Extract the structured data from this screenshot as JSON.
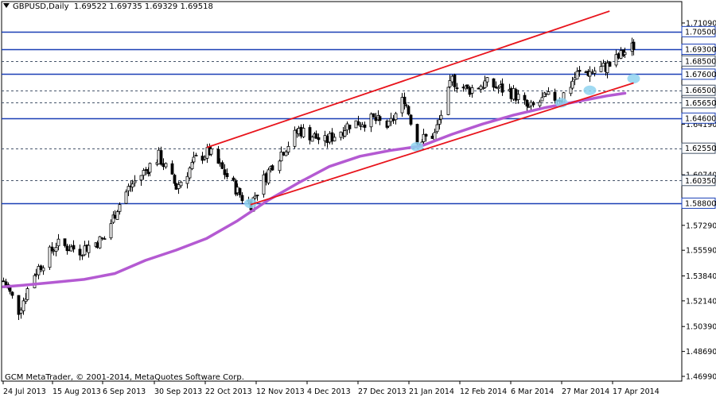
{
  "header": {
    "symbol": "GBPUSD,Daily",
    "ohlc": "1.69522 1.69735 1.69329 1.69518"
  },
  "copyright": "GCM MetaTrader, © 2001-2014, MetaQuotes Software Corp.",
  "colors": {
    "candle": "#000000",
    "level_line": "#1a3fb5",
    "dashed_level": "#45546a",
    "trend_channel": "#e8141c",
    "moving_average": "#b45ad2",
    "touch_marker": "#8fd3f0",
    "price_label_bg": "#ffffff"
  },
  "chart_data": {
    "type": "candlestick",
    "title": "GBPUSD,Daily",
    "x_ticks": [
      "24 Jul 2013",
      "15 Aug 2013",
      "6 Sep 2013",
      "30 Sep 2013",
      "22 Oct 2013",
      "12 Nov 2013",
      "4 Dec 2013",
      "27 Dec 2013",
      "21 Jan 2014",
      "12 Feb 2014",
      "6 Mar 2014",
      "27 Mar 2014",
      "17 Apr 2014"
    ],
    "y_ticks": [
      "1.71090",
      "1.69300",
      "1.67600",
      "1.65650",
      "1.64190",
      "1.62550",
      "1.60740",
      "1.58800",
      "1.57290",
      "1.55590",
      "1.53840",
      "1.52140",
      "1.50390",
      "1.48690",
      "1.46990"
    ],
    "ylim": [
      1.4699,
      1.719
    ],
    "horizontal_levels": [
      {
        "label": "1.70500",
        "value": 1.705,
        "style": "solid"
      },
      {
        "label": "1.69300",
        "value": 1.693,
        "style": "solid"
      },
      {
        "label": "1.68500",
        "value": 1.685,
        "style": "dashed"
      },
      {
        "label": "1.67600",
        "value": 1.676,
        "style": "solid"
      },
      {
        "label": "1.66500",
        "value": 1.665,
        "style": "dashed"
      },
      {
        "label": "1.65650",
        "value": 1.6565,
        "style": "dashed"
      },
      {
        "label": "1.64600",
        "value": 1.646,
        "style": "solid"
      },
      {
        "label": "1.62550",
        "value": 1.6255,
        "style": "dashed"
      },
      {
        "label": "1.60350",
        "value": 1.6035,
        "style": "dashed"
      },
      {
        "label": "1.58800",
        "value": 1.588,
        "style": "solid"
      }
    ],
    "trend_lines": [
      {
        "name": "upper-channel",
        "from": [
          "2013-10-23",
          1.626
        ],
        "to": [
          "2014-04-25",
          1.719
        ]
      },
      {
        "name": "lower-channel",
        "from": [
          "2013-11-12",
          1.587
        ],
        "to": [
          "2014-05-06",
          1.67
        ]
      }
    ],
    "touch_points": [
      [
        "2013-11-12",
        1.5878
      ],
      [
        "2014-01-27",
        1.6265
      ],
      [
        "2014-04-03",
        1.6565
      ],
      [
        "2014-04-16",
        1.665
      ],
      [
        "2014-05-06",
        1.673
      ]
    ],
    "moving_average": [
      [
        "2013-07-22",
        1.531
      ],
      [
        "2013-07-31",
        1.532
      ],
      [
        "2013-08-14",
        1.534
      ],
      [
        "2013-08-28",
        1.536
      ],
      [
        "2013-09-11",
        1.54
      ],
      [
        "2013-09-25",
        1.549
      ],
      [
        "2013-10-09",
        1.556
      ],
      [
        "2013-10-23",
        1.564
      ],
      [
        "2013-11-06",
        1.576
      ],
      [
        "2013-11-20",
        1.59
      ],
      [
        "2013-12-04",
        1.602
      ],
      [
        "2013-12-18",
        1.613
      ],
      [
        "2014-01-01",
        1.62
      ],
      [
        "2014-01-15",
        1.624
      ],
      [
        "2014-01-29",
        1.627
      ],
      [
        "2014-02-12",
        1.635
      ],
      [
        "2014-02-26",
        1.642
      ],
      [
        "2014-03-12",
        1.648
      ],
      [
        "2014-03-26",
        1.653
      ],
      [
        "2014-04-09",
        1.657
      ],
      [
        "2014-04-23",
        1.661
      ],
      [
        "2014-05-02",
        1.663
      ]
    ],
    "price_path": [
      [
        "2013-07-22",
        1.535
      ],
      [
        "2013-07-29",
        1.515
      ],
      [
        "2013-08-05",
        1.54
      ],
      [
        "2013-08-15",
        1.56
      ],
      [
        "2013-08-26",
        1.556
      ],
      [
        "2013-09-06",
        1.564
      ],
      [
        "2013-09-12",
        1.585
      ],
      [
        "2013-09-17",
        1.598
      ],
      [
        "2013-10-01",
        1.62
      ],
      [
        "2013-10-09",
        1.599
      ],
      [
        "2013-10-18",
        1.618
      ],
      [
        "2013-10-24",
        1.623
      ],
      [
        "2013-11-08",
        1.592
      ],
      [
        "2013-11-12",
        1.588
      ],
      [
        "2013-11-22",
        1.615
      ],
      [
        "2013-12-04",
        1.638
      ],
      [
        "2013-12-16",
        1.63
      ],
      [
        "2013-12-27",
        1.642
      ],
      [
        "2014-01-07",
        1.645
      ],
      [
        "2014-01-14",
        1.64
      ],
      [
        "2014-01-21",
        1.66
      ],
      [
        "2014-01-27",
        1.63
      ],
      [
        "2014-02-04",
        1.635
      ],
      [
        "2014-02-12",
        1.672
      ],
      [
        "2014-02-19",
        1.665
      ],
      [
        "2014-02-27",
        1.67
      ],
      [
        "2014-03-12",
        1.663
      ],
      [
        "2014-03-19",
        1.652
      ],
      [
        "2014-03-27",
        1.66
      ],
      [
        "2014-04-03",
        1.66
      ],
      [
        "2014-04-10",
        1.676
      ],
      [
        "2014-04-17",
        1.678
      ],
      [
        "2014-04-25",
        1.682
      ],
      [
        "2014-05-01",
        1.69
      ],
      [
        "2014-05-06",
        1.6952
      ]
    ]
  }
}
